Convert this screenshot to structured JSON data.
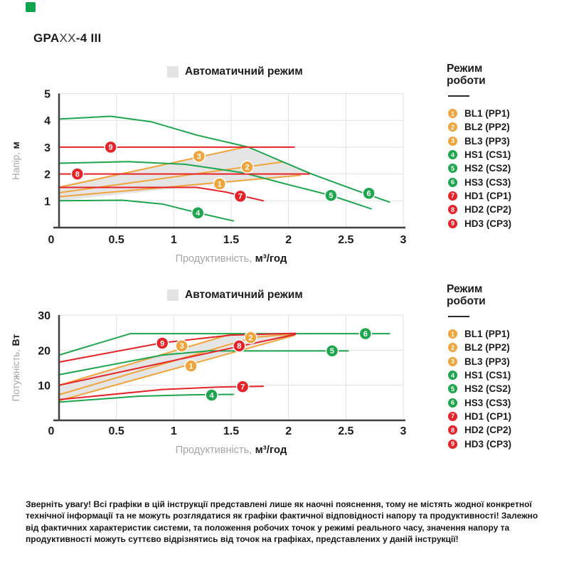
{
  "title": {
    "prefix": "GPA",
    "variable": "XX",
    "suffix": "-4 III"
  },
  "colors": {
    "orange": "#F0A43C",
    "green": "#1EA64E",
    "red": "#E52329",
    "auto_fill": "#E5E5E5",
    "grid": "#E2E2E2",
    "axis": "#404040",
    "corner_green": "#0FA54E"
  },
  "auto_label": "Автоматичний режим",
  "axis": {
    "x_gray": "Продуктивність,",
    "x_bold": "м³/год",
    "y1_gray": "Напір,",
    "y1_bold": "м",
    "y2_gray": "Потужність,",
    "y2_bold": "Вт"
  },
  "legend": {
    "title_line1": "Режим",
    "title_line2": "роботи",
    "items": [
      {
        "num": "1",
        "label": "BL1 (PP1)",
        "color": "orange"
      },
      {
        "num": "2",
        "label": "BL2 (PP2)",
        "color": "orange"
      },
      {
        "num": "3",
        "label": "BL3 (PP3)",
        "color": "orange"
      },
      {
        "num": "4",
        "label": "HS1 (CS1)",
        "color": "green"
      },
      {
        "num": "5",
        "label": "HS2 (CS2)",
        "color": "green"
      },
      {
        "num": "6",
        "label": "HS3 (CS3)",
        "color": "green"
      },
      {
        "num": "7",
        "label": "HD1 (CP1)",
        "color": "red"
      },
      {
        "num": "8",
        "label": "HD2 (CP2)",
        "color": "red"
      },
      {
        "num": "9",
        "label": "HD3 (CP3)",
        "color": "red"
      }
    ]
  },
  "chart_data": [
    {
      "type": "line",
      "title": "Автоматичний режим",
      "xlabel": "Продуктивність, м³/год",
      "ylabel": "Напір, м",
      "xlim": [
        0,
        3
      ],
      "ylim": [
        0,
        5
      ],
      "xticks": [
        0,
        0.5,
        1,
        1.5,
        2,
        2.5,
        3
      ],
      "yticks": [
        1,
        2,
        3,
        4,
        5
      ],
      "grid": true,
      "legend_position": "right",
      "auto_region": [
        [
          0,
          1.0
        ],
        [
          0,
          1.55
        ],
        [
          1.62,
          3.0
        ],
        [
          2.2,
          2.0
        ]
      ],
      "series": [
        {
          "name": "BL1 (PP1)",
          "marker": "1",
          "color": "orange",
          "points": [
            [
              0,
              1.15
            ],
            [
              2.1,
              1.95
            ]
          ],
          "marker_at": [
            1.4,
            1.63
          ]
        },
        {
          "name": "BL2 (PP2)",
          "marker": "2",
          "color": "orange",
          "points": [
            [
              0,
              1.3
            ],
            [
              1.95,
              2.45
            ]
          ],
          "marker_at": [
            1.64,
            2.26
          ]
        },
        {
          "name": "BL3 (PP3)",
          "marker": "3",
          "color": "orange",
          "points": [
            [
              0,
              1.5
            ],
            [
              1.62,
              3.0
            ]
          ],
          "marker_at": [
            1.22,
            2.66
          ]
        },
        {
          "name": "HS1 (CS1)",
          "marker": "4",
          "color": "green",
          "points": [
            [
              0,
              1.0
            ],
            [
              0.55,
              1.02
            ],
            [
              0.9,
              0.88
            ],
            [
              1.21,
              0.55
            ],
            [
              1.52,
              0.25
            ]
          ],
          "marker_at": [
            1.21,
            0.55
          ]
        },
        {
          "name": "HS2 (CS2)",
          "marker": "5",
          "color": "green",
          "points": [
            [
              0,
              2.4
            ],
            [
              0.6,
              2.46
            ],
            [
              1.1,
              2.36
            ],
            [
              1.6,
              2.05
            ],
            [
              2.0,
              1.6
            ],
            [
              2.37,
              1.2
            ],
            [
              2.72,
              0.7
            ]
          ],
          "marker_at": [
            2.37,
            1.2
          ]
        },
        {
          "name": "HS3 (CS3)",
          "marker": "6",
          "color": "green",
          "points": [
            [
              0,
              4.05
            ],
            [
              0.45,
              4.15
            ],
            [
              0.8,
              3.95
            ],
            [
              1.2,
              3.45
            ],
            [
              1.65,
              3.0
            ],
            [
              2.2,
              2.0
            ],
            [
              2.55,
              1.45
            ],
            [
              2.88,
              0.95
            ]
          ],
          "marker_at": [
            2.7,
            1.28
          ]
        },
        {
          "name": "HD1 (CP1)",
          "marker": "7",
          "color": "red",
          "points": [
            [
              0,
              1.5
            ],
            [
              1.2,
              1.5
            ],
            [
              1.45,
              1.33
            ],
            [
              1.78,
              1.0
            ]
          ],
          "marker_at": [
            1.58,
            1.17
          ]
        },
        {
          "name": "HD2 (CP2)",
          "marker": "8",
          "color": "red",
          "points": [
            [
              0,
              2.0
            ],
            [
              2.18,
              2.0
            ]
          ],
          "marker_at": [
            0.16,
            2.0
          ]
        },
        {
          "name": "HD3 (CP3)",
          "marker": "9",
          "color": "red",
          "points": [
            [
              0,
              3.0
            ],
            [
              2.05,
              3.0
            ]
          ],
          "marker_at": [
            0.45,
            3.0
          ]
        }
      ]
    },
    {
      "type": "line",
      "title": "Автоматичний режим",
      "xlabel": "Продуктивність, м³/год",
      "ylabel": "Потужність, Вт",
      "xlim": [
        0,
        3
      ],
      "ylim": [
        0,
        30
      ],
      "xticks": [
        0,
        0.5,
        1,
        1.5,
        2,
        2.5,
        3
      ],
      "yticks": [
        10,
        20,
        30
      ],
      "grid": true,
      "legend_position": "right",
      "auto_region": [
        [
          0,
          5.6
        ],
        [
          0,
          10
        ],
        [
          1.5,
          24.6
        ],
        [
          2.06,
          24.7
        ]
      ],
      "series": [
        {
          "name": "BL1 (PP1)",
          "marker": "1",
          "color": "orange",
          "points": [
            [
              0,
              5.6
            ],
            [
              2.05,
              24.2
            ]
          ],
          "marker_at": [
            1.15,
            15.5
          ]
        },
        {
          "name": "BL2 (PP2)",
          "marker": "2",
          "color": "orange",
          "points": [
            [
              0,
              7.3
            ],
            [
              1.7,
              23.7
            ],
            [
              2.06,
              24.6
            ]
          ],
          "marker_at": [
            1.67,
            23.6
          ]
        },
        {
          "name": "BL3 (PP3)",
          "marker": "3",
          "color": "orange",
          "points": [
            [
              0,
              10
            ],
            [
              1.5,
              24.6
            ]
          ],
          "marker_at": [
            1.07,
            21.2
          ]
        },
        {
          "name": "HS1 (CS1)",
          "marker": "4",
          "color": "green",
          "points": [
            [
              0,
              5.2
            ],
            [
              0.7,
              6.9
            ],
            [
              1.2,
              7.3
            ],
            [
              1.52,
              7.4
            ]
          ],
          "marker_at": [
            1.33,
            7.2
          ]
        },
        {
          "name": "HS2 (CS2)",
          "marker": "5",
          "color": "green",
          "points": [
            [
              0,
              13
            ],
            [
              0.9,
              18.6
            ],
            [
              1.3,
              19.8
            ],
            [
              2.52,
              19.8
            ]
          ],
          "marker_at": [
            2.38,
            19.8
          ]
        },
        {
          "name": "HS3 (CS3)",
          "marker": "6",
          "color": "green",
          "points": [
            [
              0,
              18.6
            ],
            [
              0.62,
              24.7
            ],
            [
              2.88,
              24.7
            ]
          ],
          "marker_at": [
            2.67,
            24.7
          ]
        },
        {
          "name": "HD1 (CP1)",
          "marker": "7",
          "color": "red",
          "points": [
            [
              0,
              5.9
            ],
            [
              0.9,
              8.8
            ],
            [
              1.4,
              9.5
            ],
            [
              1.78,
              9.7
            ]
          ],
          "marker_at": [
            1.6,
            9.6
          ]
        },
        {
          "name": "HD2 (CP2)",
          "marker": "8",
          "color": "red",
          "points": [
            [
              0,
              10
            ],
            [
              1.6,
              21.3
            ],
            [
              2.06,
              24.5
            ]
          ],
          "marker_at": [
            1.57,
            21.2
          ]
        },
        {
          "name": "HD3 (CP3)",
          "marker": "9",
          "color": "red",
          "points": [
            [
              0,
              16.6
            ],
            [
              0.9,
              22.1
            ],
            [
              1.5,
              24.3
            ],
            [
              2.06,
              24.8
            ]
          ],
          "marker_at": [
            0.9,
            22.0
          ]
        }
      ]
    }
  ],
  "note": {
    "text": "Зверніть увагу! Всі графіки в цій інструкції представлені лише як наочні пояснення, тому не містять жодної конкретної технічної інформації та не можуть розглядатися як графіки фактичної відповідності напору та продуктивності! Залежно від фактичних характеристик системи, та положення робочих точок у режимі реального часу, значення напору та продуктивності можуть суттєво відрізнятись від точок на графіках, представлених у даній інструкції!"
  }
}
